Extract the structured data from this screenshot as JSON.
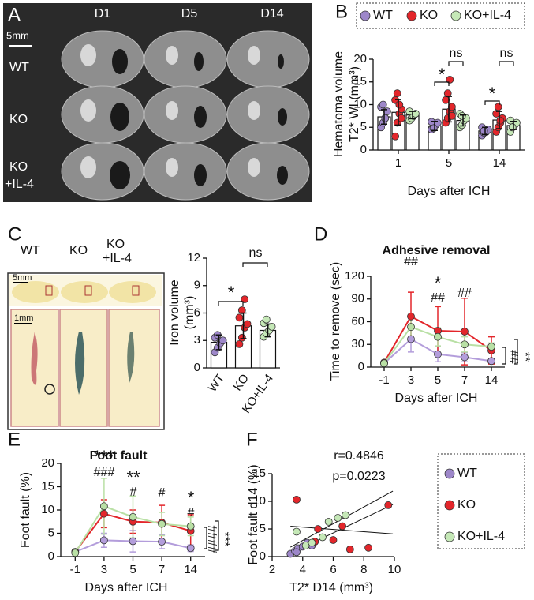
{
  "panel_a": {
    "panel": "A",
    "columns": [
      "D1",
      "D5",
      "D14"
    ],
    "scale": "5mm",
    "rows": [
      [
        "WT"
      ],
      [
        "KO"
      ],
      [
        "KO",
        "+IL-4"
      ]
    ]
  },
  "panel_c_image": {
    "groups": [
      [
        "WT"
      ],
      [
        "KO"
      ],
      [
        "KO",
        "+IL-4"
      ]
    ],
    "scale_top": "5mm",
    "scale_bottom": "1mm"
  },
  "chart_data": [
    {
      "type": "bar",
      "panel": "B",
      "ylabel": [
        "Hematoma volume",
        "T2* WI (mm³)"
      ],
      "xlabel": "Days after ICH",
      "categories": [
        "1",
        "5",
        "14"
      ],
      "ylim": [
        0,
        20
      ],
      "yticks": [
        0,
        5,
        10,
        15,
        20
      ],
      "series": [
        {
          "name": "WT",
          "color": "#9d87c9",
          "values": [
            7.3,
            5.3,
            4.2
          ],
          "errors": [
            1.6,
            1,
            0.8
          ],
          "points": [
            [
              5,
              6,
              7,
              8.5,
              9.5,
              10,
              7
            ],
            [
              4.5,
              5,
              5.5,
              6,
              6.2,
              4.8
            ],
            [
              3.2,
              3.8,
              4,
              4.5,
              5,
              4.2
            ]
          ]
        },
        {
          "name": "KO",
          "color": "#e3262b",
          "values": [
            8.3,
            9,
            6.6
          ],
          "errors": [
            2.8,
            2.8,
            1.9
          ],
          "points": [
            [
              3,
              6,
              8,
              9,
              11,
              12.5,
              10,
              7
            ],
            [
              6,
              7,
              8.5,
              9.5,
              11,
              12.5,
              15.5,
              7.5
            ],
            [
              4,
              5,
              6,
              7,
              8,
              9.5,
              6.5
            ]
          ]
        },
        {
          "name": "KO+IL-4",
          "color": "#c5e8b7",
          "values": [
            7.7,
            6.5,
            5.4
          ],
          "errors": [
            0.8,
            1.2,
            0.9
          ],
          "points": [
            [
              6.5,
              7,
              7.5,
              8,
              8.5
            ],
            [
              5,
              5.5,
              6.5,
              7,
              8,
              7.5
            ],
            [
              4,
              5,
              5.5,
              6,
              6.5,
              5
            ]
          ]
        }
      ],
      "annotations": [
        "*",
        "ns",
        "*",
        "ns"
      ]
    },
    {
      "type": "bar",
      "panel": "C",
      "ylabel": [
        "Iron volume",
        "(mm³)"
      ],
      "categories": [
        "WT",
        "KO",
        "KO+IL-4"
      ],
      "colors": [
        "#9d87c9",
        "#e3262b",
        "#c5e8b7"
      ],
      "values": [
        2.8,
        4.6,
        4.1
      ],
      "errors": [
        0.8,
        1.4,
        0.7
      ],
      "points": [
        [
          1.7,
          2.2,
          2.7,
          3,
          3.3,
          3.6
        ],
        [
          2.6,
          3.3,
          4.4,
          4.8,
          5.5,
          6.3,
          7.5
        ],
        [
          3.4,
          3.8,
          4.1,
          4.5,
          4.9,
          5.3
        ]
      ],
      "ylim": [
        0,
        12
      ],
      "yticks": [
        0,
        3,
        6,
        9,
        12
      ],
      "annotations": [
        "*",
        "ns"
      ]
    },
    {
      "type": "line",
      "panel": "D",
      "title": "Adhesive removal",
      "ylabel": "Time to remove (sec)",
      "xlabel": "Days after ICH",
      "categories": [
        "-1",
        "3",
        "5",
        "7",
        "14"
      ],
      "ylim": [
        0,
        120
      ],
      "yticks": [
        0,
        30,
        60,
        90,
        120
      ],
      "series": [
        {
          "name": "WT",
          "color": "#b39ddb",
          "values": [
            5,
            37,
            17,
            13,
            8
          ],
          "errors": [
            2,
            17,
            10,
            6,
            3
          ]
        },
        {
          "name": "KO",
          "color": "#e3262b",
          "values": [
            6,
            67,
            48,
            47,
            22
          ],
          "errors": [
            2,
            32,
            32,
            44,
            18
          ]
        },
        {
          "name": "KO+IL-4",
          "color": "#b9e0a5",
          "values": [
            5,
            53,
            40,
            30,
            27
          ],
          "errors": [
            2,
            15,
            12,
            10,
            5
          ]
        }
      ],
      "annotations": [
        "##",
        "*",
        "##",
        "##"
      ],
      "side_annotations": [
        "##",
        "**"
      ]
    },
    {
      "type": "line",
      "panel": "E",
      "title": "Foot fault",
      "ylabel": "Foot fault (%)",
      "xlabel": "Days after ICH",
      "categories": [
        "-1",
        "3",
        "5",
        "7",
        "14"
      ],
      "ylim": [
        0,
        20
      ],
      "yticks": [
        0,
        5,
        10,
        15,
        20
      ],
      "series": [
        {
          "name": "WT",
          "color": "#b39ddb",
          "values": [
            1,
            3.5,
            3.3,
            3.2,
            1.8
          ],
          "errors": [
            0.5,
            1.5,
            2.3,
            1.5,
            0.7
          ]
        },
        {
          "name": "KO",
          "color": "#e3262b",
          "values": [
            1,
            9.2,
            7.5,
            7.3,
            5.5
          ],
          "errors": [
            0.5,
            3,
            2.5,
            3.7,
            3.5
          ]
        },
        {
          "name": "KO+IL-4",
          "color": "#b9e0a5",
          "values": [
            0.8,
            10.8,
            8.5,
            7,
            6.5
          ],
          "errors": [
            0.4,
            6,
            4.5,
            2.5,
            2
          ]
        }
      ],
      "annotations": [
        "***",
        "###",
        "**",
        "#",
        "#",
        "*",
        "#"
      ],
      "side_annotations": [
        "####",
        "***"
      ]
    },
    {
      "type": "scatter",
      "panel": "F",
      "ylabel": "Foot fault d14 (%)",
      "xlabel": "T2* D14 (mm³)",
      "xlim": [
        2,
        10
      ],
      "xticks": [
        2,
        4,
        6,
        8,
        10
      ],
      "ylim": [
        0,
        15
      ],
      "yticks": [
        0,
        5,
        10,
        15
      ],
      "annotations": [
        "r=0.4846",
        "p=0.0223"
      ],
      "series": [
        {
          "name": "WT",
          "color": "#9d87c9",
          "x": [
            3.2,
            3.5,
            3.7,
            4,
            4.3,
            3.6,
            4.6
          ],
          "values": [
            0.5,
            1,
            1.5,
            1.8,
            2.5,
            0.8,
            2
          ]
        },
        {
          "name": "KO",
          "color": "#e3262b",
          "x": [
            3.6,
            4.8,
            5,
            6,
            6.6,
            7.1,
            8.3,
            9.6
          ],
          "values": [
            10.3,
            2.7,
            5,
            3,
            5.5,
            1.3,
            1.6,
            9.3
          ]
        },
        {
          "name": "KO+IL-4",
          "color": "#c5e8b7",
          "x": [
            3.6,
            4.2,
            4.6,
            5.3,
            5.7,
            6.3,
            6.8
          ],
          "values": [
            4.5,
            2,
            2.5,
            3.5,
            6.3,
            7,
            7.5
          ]
        }
      ]
    }
  ]
}
